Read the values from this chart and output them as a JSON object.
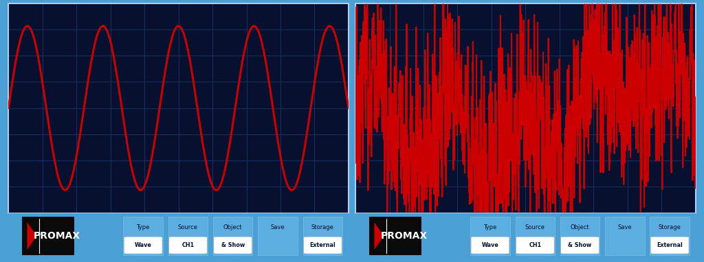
{
  "bg_outer": "#4a9fd4",
  "bg_screen": "#07102e",
  "grid_color": "#1a3060",
  "grid_dot_color": "#2a4888",
  "wave_color": "#cc0000",
  "wave_lw": 2.2,
  "noise_lw": 1.4,
  "grid_major_rows": 8,
  "grid_major_cols": 10,
  "sine_cycles": 4.5,
  "sine_amplitude": 0.85,
  "noise_seed": 17,
  "bottom_bar_color": "#4a9fd4",
  "promax_bg": "#0a0a0a",
  "promax_text": "PROMAX",
  "promax_triangle_color": "#cc0000",
  "btn_labels_top": [
    "Type",
    "Source",
    "Object",
    "Save",
    "Storage"
  ],
  "btn_labels_bot": [
    "Wave",
    "CH1",
    "& Show",
    "",
    "External"
  ],
  "btn_bg": "#5aaee0",
  "btn_highlight": "#ffffff",
  "screen_border_color": "#b0ccee"
}
